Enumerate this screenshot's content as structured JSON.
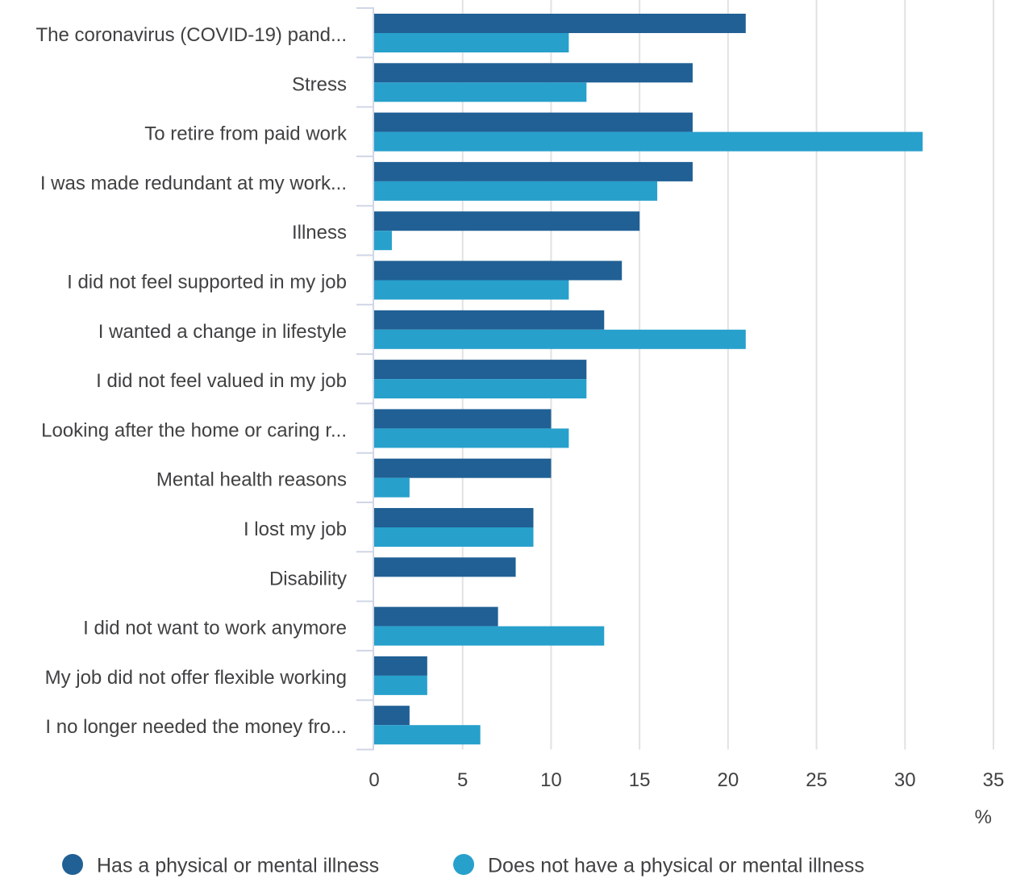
{
  "chart_data": {
    "type": "bar",
    "orientation": "horizontal",
    "categories": [
      "The coronavirus (COVID-19) pand...",
      "Stress",
      "To retire from paid work",
      "I was made redundant at my work...",
      "Illness",
      "I did not feel supported in my job",
      "I wanted a change in lifestyle",
      "I did not feel valued in my job",
      "Looking after the home or caring r...",
      "Mental health reasons",
      "I lost my job",
      "Disability",
      "I did not want to work anymore",
      "My job did not offer flexible working",
      "I no longer needed the money fro..."
    ],
    "series": [
      {
        "name": "Has a physical or mental illness",
        "color": "#206095",
        "values": [
          21,
          18,
          18,
          18,
          15,
          14,
          13,
          12,
          10,
          10,
          9,
          8,
          7,
          3,
          2
        ]
      },
      {
        "name": "Does not have a physical or mental illness",
        "color": "#27a0cc",
        "values": [
          11,
          12,
          31,
          16,
          1,
          11,
          21,
          12,
          11,
          2,
          9,
          0,
          13,
          3,
          6
        ]
      }
    ],
    "xlim": [
      0,
      35
    ],
    "xticks": [
      "0",
      "5",
      "10",
      "15",
      "20",
      "25",
      "30",
      "35"
    ],
    "xlabel": "%",
    "grid": true,
    "legend": "bottom"
  },
  "colors": {
    "grid": "#e2e2e3",
    "axis": "#d0d6e6",
    "text": "#414042"
  }
}
